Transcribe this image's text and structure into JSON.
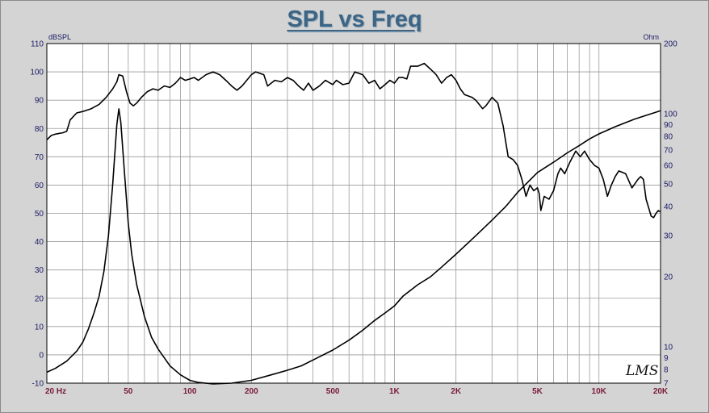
{
  "chart_data": {
    "type": "line",
    "title": "SPL vs Freq",
    "left_axis": {
      "unit": "dBSPL",
      "range": [
        -10,
        110
      ],
      "ticks": [
        -10,
        0,
        10,
        20,
        30,
        40,
        50,
        60,
        70,
        80,
        90,
        100,
        110
      ]
    },
    "right_axis": {
      "unit": "Ohm",
      "scale": "log",
      "range": [
        7,
        200
      ],
      "ticks": [
        7,
        8,
        9,
        10,
        20,
        30,
        40,
        50,
        60,
        70,
        80,
        90,
        100,
        200
      ]
    },
    "x_axis": {
      "scale": "log",
      "range": [
        20,
        20000
      ],
      "ticks": [
        {
          "value": 20,
          "label": "20  Hz"
        },
        {
          "value": 50,
          "label": "50"
        },
        {
          "value": 100,
          "label": "100"
        },
        {
          "value": 200,
          "label": "200"
        },
        {
          "value": 500,
          "label": "500"
        },
        {
          "value": 1000,
          "label": "1K"
        },
        {
          "value": 2000,
          "label": "2K"
        },
        {
          "value": 5000,
          "label": "5K"
        },
        {
          "value": 10000,
          "label": "10K"
        },
        {
          "value": 20000,
          "label": "20K"
        }
      ]
    },
    "grid": true,
    "signature": "LMS",
    "series": [
      {
        "axis": "left",
        "values": [
          [
            20,
            76
          ],
          [
            21,
            77.5
          ],
          [
            22,
            78
          ],
          [
            24,
            78.5
          ],
          [
            25,
            79
          ],
          [
            26,
            83
          ],
          [
            28,
            85.5
          ],
          [
            30,
            86
          ],
          [
            33,
            87
          ],
          [
            36,
            88.5
          ],
          [
            39,
            91
          ],
          [
            42,
            94
          ],
          [
            44,
            96.5
          ],
          [
            45,
            99
          ],
          [
            47,
            98.5
          ],
          [
            49,
            93
          ],
          [
            51,
            89
          ],
          [
            53,
            88
          ],
          [
            55,
            89
          ],
          [
            58,
            91
          ],
          [
            62,
            93
          ],
          [
            66,
            94
          ],
          [
            70,
            93.5
          ],
          [
            75,
            95
          ],
          [
            80,
            94.5
          ],
          [
            85,
            96
          ],
          [
            90,
            98
          ],
          [
            95,
            97
          ],
          [
            100,
            97.5
          ],
          [
            105,
            98
          ],
          [
            110,
            97
          ],
          [
            120,
            99
          ],
          [
            130,
            100
          ],
          [
            140,
            99
          ],
          [
            150,
            97
          ],
          [
            160,
            95
          ],
          [
            170,
            93.5
          ],
          [
            180,
            95
          ],
          [
            200,
            99
          ],
          [
            210,
            100
          ],
          [
            230,
            99
          ],
          [
            240,
            95
          ],
          [
            260,
            97
          ],
          [
            280,
            96.5
          ],
          [
            300,
            98
          ],
          [
            320,
            97
          ],
          [
            340,
            95
          ],
          [
            360,
            93.5
          ],
          [
            380,
            96
          ],
          [
            400,
            93.5
          ],
          [
            430,
            95
          ],
          [
            460,
            97
          ],
          [
            500,
            95.5
          ],
          [
            520,
            97
          ],
          [
            560,
            95.5
          ],
          [
            600,
            96
          ],
          [
            640,
            100
          ],
          [
            700,
            99
          ],
          [
            750,
            96
          ],
          [
            800,
            97
          ],
          [
            850,
            94
          ],
          [
            900,
            95.5
          ],
          [
            950,
            97
          ],
          [
            1000,
            96
          ],
          [
            1050,
            98
          ],
          [
            1100,
            98
          ],
          [
            1150,
            97.5
          ],
          [
            1200,
            102
          ],
          [
            1300,
            102
          ],
          [
            1400,
            103
          ],
          [
            1500,
            101
          ],
          [
            1600,
            99
          ],
          [
            1700,
            96
          ],
          [
            1800,
            98
          ],
          [
            1900,
            99
          ],
          [
            2000,
            97
          ],
          [
            2100,
            94
          ],
          [
            2200,
            92
          ],
          [
            2400,
            91
          ],
          [
            2500,
            90
          ],
          [
            2700,
            87
          ],
          [
            2800,
            88
          ],
          [
            3000,
            91
          ],
          [
            3200,
            89
          ],
          [
            3400,
            81
          ],
          [
            3600,
            70
          ],
          [
            3800,
            69
          ],
          [
            4000,
            67
          ],
          [
            4200,
            62
          ],
          [
            4400,
            56
          ],
          [
            4600,
            60
          ],
          [
            4800,
            58
          ],
          [
            5000,
            59
          ],
          [
            5100,
            57
          ],
          [
            5200,
            51
          ],
          [
            5400,
            56
          ],
          [
            5700,
            55
          ],
          [
            6000,
            58
          ],
          [
            6300,
            64
          ],
          [
            6500,
            66
          ],
          [
            6800,
            64
          ],
          [
            7200,
            68
          ],
          [
            7700,
            72
          ],
          [
            8100,
            70
          ],
          [
            8500,
            72
          ],
          [
            9000,
            69
          ],
          [
            9500,
            67
          ],
          [
            10000,
            66
          ],
          [
            10500,
            62
          ],
          [
            11000,
            56
          ],
          [
            11500,
            60
          ],
          [
            12000,
            63
          ],
          [
            12500,
            65
          ],
          [
            13500,
            64
          ],
          [
            14500,
            59
          ],
          [
            15500,
            62
          ],
          [
            16000,
            63
          ],
          [
            16500,
            62
          ],
          [
            17000,
            55
          ],
          [
            18000,
            49
          ],
          [
            18500,
            48.5
          ],
          [
            19000,
            50
          ],
          [
            19500,
            51
          ],
          [
            20000,
            50.5
          ]
        ]
      },
      {
        "axis": "right",
        "values": [
          [
            20,
            7.8
          ],
          [
            22,
            8.1
          ],
          [
            25,
            8.7
          ],
          [
            28,
            9.6
          ],
          [
            30,
            10.5
          ],
          [
            32,
            12
          ],
          [
            34,
            14
          ],
          [
            36,
            16.5
          ],
          [
            38,
            21
          ],
          [
            40,
            30
          ],
          [
            42,
            50
          ],
          [
            44,
            90
          ],
          [
            45,
            105
          ],
          [
            46,
            92
          ],
          [
            48,
            55
          ],
          [
            50,
            34
          ],
          [
            52,
            25
          ],
          [
            55,
            18.5
          ],
          [
            60,
            13.5
          ],
          [
            65,
            11
          ],
          [
            70,
            9.8
          ],
          [
            80,
            8.3
          ],
          [
            90,
            7.6
          ],
          [
            100,
            7.2
          ],
          [
            110,
            7.05
          ],
          [
            130,
            6.95
          ],
          [
            160,
            7
          ],
          [
            200,
            7.2
          ],
          [
            250,
            7.6
          ],
          [
            300,
            7.95
          ],
          [
            350,
            8.3
          ],
          [
            400,
            8.8
          ],
          [
            500,
            9.7
          ],
          [
            600,
            10.7
          ],
          [
            700,
            11.8
          ],
          [
            800,
            13
          ],
          [
            900,
            14
          ],
          [
            1000,
            15
          ],
          [
            1100,
            16.5
          ],
          [
            1300,
            18.5
          ],
          [
            1500,
            20
          ],
          [
            1700,
            22
          ],
          [
            2000,
            25
          ],
          [
            2500,
            30
          ],
          [
            3000,
            35
          ],
          [
            3500,
            40
          ],
          [
            4000,
            46
          ],
          [
            4500,
            51
          ],
          [
            5000,
            56
          ],
          [
            6000,
            62
          ],
          [
            7000,
            68
          ],
          [
            8000,
            73
          ],
          [
            9000,
            78
          ],
          [
            10000,
            82
          ],
          [
            12000,
            88
          ],
          [
            15000,
            95
          ],
          [
            18000,
            100
          ],
          [
            20000,
            103
          ]
        ]
      }
    ]
  }
}
